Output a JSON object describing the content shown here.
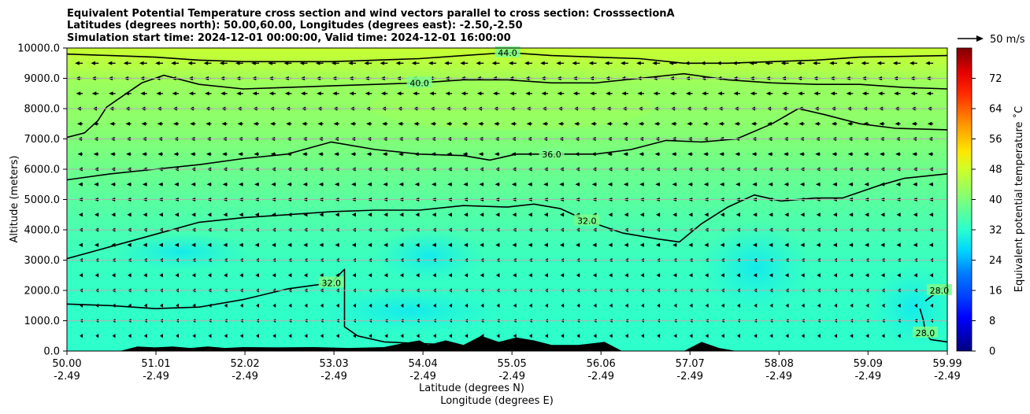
{
  "chart_data": {
    "type": "heatmap",
    "subtype": "filled-contour cross section with wind quiver",
    "title_lines": [
      "Equivalent Potential Temperature cross section and wind vectors parallel to cross section: CrosssectionA",
      "Latitudes (degrees north): 50.00,60.00, Longitudes (degrees east): -2.50,-2.50",
      "Simulation start time: 2024-12-01 00:00:00, Valid time: 2024-12-01 16:00:00"
    ],
    "ylabel": "Altitude (meters)",
    "xlabel_lines": [
      "Latitude (degrees N)",
      "Longitude (degrees E)"
    ],
    "x_range": [
      50.0,
      59.99
    ],
    "ylim": [
      0,
      10000
    ],
    "y_ticks": [
      {
        "value": 0,
        "label": "0.0"
      },
      {
        "value": 1000,
        "label": "1000.0"
      },
      {
        "value": 2000,
        "label": "2000.0"
      },
      {
        "value": 3000,
        "label": "3000.0"
      },
      {
        "value": 4000,
        "label": "4000.0"
      },
      {
        "value": 5000,
        "label": "5000.0"
      },
      {
        "value": 6000,
        "label": "6000.0"
      },
      {
        "value": 7000,
        "label": "7000.0"
      },
      {
        "value": 8000,
        "label": "8000.0"
      },
      {
        "value": 9000,
        "label": "9000.0"
      },
      {
        "value": 10000,
        "label": "10000.0"
      }
    ],
    "x_ticks": [
      {
        "lat": 50.0,
        "lat_label": "50.00",
        "lon_label": "-2.49"
      },
      {
        "lat": 51.01,
        "lat_label": "51.01",
        "lon_label": "-2.49"
      },
      {
        "lat": 52.02,
        "lat_label": "52.02",
        "lon_label": "-2.49"
      },
      {
        "lat": 53.03,
        "lat_label": "53.03",
        "lon_label": "-2.49"
      },
      {
        "lat": 54.04,
        "lat_label": "54.04",
        "lon_label": "-2.49"
      },
      {
        "lat": 55.05,
        "lat_label": "55.05",
        "lon_label": "-2.49"
      },
      {
        "lat": 56.06,
        "lat_label": "56.06",
        "lon_label": "-2.49"
      },
      {
        "lat": 57.07,
        "lat_label": "57.07",
        "lon_label": "-2.49"
      },
      {
        "lat": 58.08,
        "lat_label": "58.08",
        "lon_label": "-2.49"
      },
      {
        "lat": 59.09,
        "lat_label": "59.09",
        "lon_label": "-2.49"
      },
      {
        "lat": 59.99,
        "lat_label": "59.99",
        "lon_label": "-2.49"
      }
    ],
    "grid": "horizontal",
    "colorbar": {
      "label": "Equivalent potential temperature ˚C",
      "range": [
        0,
        80
      ],
      "ticks": [
        0,
        8,
        16,
        24,
        32,
        40,
        48,
        56,
        64,
        72
      ],
      "levels_step": 2
    },
    "quiver_key": {
      "label": "50 m/s",
      "speed": 50
    },
    "wind_field": {
      "latitudes": [
        50.0,
        50.18,
        50.36,
        50.55,
        50.73,
        50.91,
        51.09,
        51.27,
        51.46,
        51.64,
        51.82,
        52.0,
        52.18,
        52.37,
        52.55,
        52.73,
        52.91,
        53.09,
        53.28,
        53.46,
        53.64,
        53.82,
        54.0,
        54.19,
        54.37,
        54.55,
        54.73,
        54.91,
        55.1,
        55.28,
        55.46,
        55.64,
        55.82,
        56.01,
        56.19,
        56.37,
        56.55,
        56.73,
        56.92,
        57.1,
        57.28,
        57.46,
        57.64,
        57.83,
        58.01,
        58.19,
        58.37,
        58.55,
        58.74,
        58.92,
        59.1,
        59.28,
        59.46,
        59.65,
        59.83
      ],
      "levels_m": [
        500,
        1000,
        1500,
        2000,
        2500,
        3000,
        3500,
        4000,
        4500,
        5000,
        5500,
        6000,
        6500,
        7000,
        7500,
        8000,
        8500,
        9000,
        9500
      ],
      "parallel_speed_m_s_by_level": [
        -6,
        -6,
        -6,
        -7,
        -7,
        -7,
        -8,
        -8,
        -8,
        -9,
        -9,
        -9,
        -10,
        -10,
        -11,
        -12,
        -13,
        -14,
        -15
      ]
    },
    "contours": [
      {
        "value": 28.0,
        "label": "28.0",
        "points": [
          [
            59.68,
            1400
          ],
          [
            59.72,
            1000
          ],
          [
            59.74,
            600
          ],
          [
            59.8,
            380
          ],
          [
            59.99,
            300
          ]
        ]
      },
      {
        "value": 28.0,
        "label": "28.0",
        "points": [
          [
            59.74,
            1650
          ],
          [
            59.9,
            2000
          ],
          [
            59.99,
            2180
          ]
        ]
      },
      {
        "value": 32.0,
        "label": "32.0",
        "points": [
          [
            50.0,
            1550
          ],
          [
            50.5,
            1500
          ],
          [
            51.0,
            1400
          ],
          [
            51.5,
            1450
          ],
          [
            52.0,
            1700
          ],
          [
            52.5,
            2050
          ],
          [
            53.0,
            2250
          ],
          [
            53.15,
            2700
          ],
          [
            53.15,
            800
          ],
          [
            53.3,
            500
          ],
          [
            53.6,
            300
          ],
          [
            54.0,
            250
          ],
          [
            54.4,
            200
          ]
        ]
      },
      {
        "value": 32.0,
        "label": "32.0",
        "points": [
          [
            50.0,
            3050
          ],
          [
            50.5,
            3450
          ],
          [
            51.0,
            3850
          ],
          [
            51.5,
            4250
          ],
          [
            52.0,
            4400
          ],
          [
            52.5,
            4500
          ],
          [
            53.0,
            4600
          ],
          [
            53.5,
            4650
          ],
          [
            54.0,
            4650
          ],
          [
            54.5,
            4800
          ],
          [
            55.0,
            4750
          ],
          [
            55.3,
            4850
          ],
          [
            55.6,
            4700
          ],
          [
            55.9,
            4300
          ],
          [
            56.3,
            3900
          ],
          [
            56.7,
            3700
          ],
          [
            56.95,
            3600
          ],
          [
            57.2,
            4200
          ],
          [
            57.5,
            4750
          ],
          [
            57.8,
            5150
          ],
          [
            58.1,
            4950
          ],
          [
            58.5,
            5050
          ],
          [
            58.8,
            5050
          ],
          [
            59.2,
            5450
          ],
          [
            59.5,
            5700
          ],
          [
            59.99,
            5850
          ]
        ]
      },
      {
        "value": 36.0,
        "label": "36.0",
        "points": [
          [
            50.0,
            5650
          ],
          [
            50.5,
            5850
          ],
          [
            51.0,
            6000
          ],
          [
            51.5,
            6150
          ],
          [
            52.0,
            6350
          ],
          [
            52.5,
            6500
          ],
          [
            53.0,
            6900
          ],
          [
            53.5,
            6650
          ],
          [
            54.0,
            6500
          ],
          [
            54.5,
            6450
          ],
          [
            54.8,
            6300
          ],
          [
            55.1,
            6500
          ],
          [
            55.5,
            6500
          ],
          [
            56.0,
            6500
          ],
          [
            56.4,
            6650
          ],
          [
            56.8,
            6950
          ],
          [
            57.2,
            6900
          ],
          [
            57.6,
            7000
          ],
          [
            58.0,
            7500
          ],
          [
            58.3,
            8000
          ],
          [
            58.6,
            7800
          ],
          [
            59.0,
            7500
          ],
          [
            59.4,
            7350
          ],
          [
            59.99,
            7300
          ]
        ]
      },
      {
        "value": 40.0,
        "label": "40.0",
        "points": [
          [
            50.0,
            7050
          ],
          [
            50.2,
            7200
          ],
          [
            50.35,
            7600
          ],
          [
            50.45,
            8050
          ],
          [
            50.65,
            8450
          ],
          [
            50.85,
            8850
          ],
          [
            51.1,
            9100
          ],
          [
            51.5,
            8800
          ],
          [
            52.0,
            8650
          ],
          [
            52.5,
            8700
          ],
          [
            53.0,
            8750
          ],
          [
            53.5,
            8800
          ],
          [
            54.0,
            8850
          ],
          [
            54.5,
            8950
          ],
          [
            55.0,
            8950
          ],
          [
            55.5,
            8850
          ],
          [
            56.0,
            8850
          ],
          [
            56.5,
            9000
          ],
          [
            57.0,
            9150
          ],
          [
            57.5,
            8950
          ],
          [
            58.0,
            8850
          ],
          [
            58.5,
            8800
          ],
          [
            59.0,
            8800
          ],
          [
            59.5,
            8700
          ],
          [
            59.99,
            8650
          ]
        ]
      },
      {
        "value": 44.0,
        "label": "44.0",
        "points": [
          [
            50.0,
            9800
          ],
          [
            50.5,
            9750
          ],
          [
            51.0,
            9700
          ],
          [
            51.5,
            9600
          ],
          [
            52.0,
            9550
          ],
          [
            52.5,
            9550
          ],
          [
            53.0,
            9550
          ],
          [
            53.5,
            9600
          ],
          [
            54.0,
            9650
          ],
          [
            54.5,
            9750
          ],
          [
            55.0,
            9850
          ],
          [
            55.5,
            9750
          ],
          [
            56.0,
            9700
          ],
          [
            56.5,
            9650
          ],
          [
            57.0,
            9500
          ],
          [
            57.5,
            9500
          ],
          [
            58.0,
            9550
          ],
          [
            58.5,
            9600
          ],
          [
            59.0,
            9700
          ],
          [
            59.99,
            9750
          ]
        ]
      }
    ],
    "terrain": {
      "description": "black filled orography along the bottom axis (peaks up to ~600 m near 54.8°N)",
      "points": [
        [
          50.0,
          0
        ],
        [
          50.6,
          0
        ],
        [
          50.8,
          150
        ],
        [
          51.0,
          120
        ],
        [
          51.2,
          150
        ],
        [
          51.4,
          100
        ],
        [
          51.6,
          150
        ],
        [
          51.8,
          100
        ],
        [
          52.0,
          130
        ],
        [
          52.4,
          120
        ],
        [
          52.8,
          130
        ],
        [
          53.2,
          100
        ],
        [
          53.6,
          130
        ],
        [
          53.8,
          250
        ],
        [
          54.0,
          350
        ],
        [
          54.1,
          200
        ],
        [
          54.3,
          350
        ],
        [
          54.5,
          200
        ],
        [
          54.7,
          500
        ],
        [
          54.9,
          300
        ],
        [
          55.1,
          450
        ],
        [
          55.3,
          350
        ],
        [
          55.5,
          200
        ],
        [
          55.8,
          200
        ],
        [
          56.1,
          300
        ],
        [
          56.3,
          0
        ],
        [
          57.0,
          0
        ],
        [
          57.2,
          300
        ],
        [
          57.4,
          100
        ],
        [
          57.6,
          0
        ],
        [
          59.99,
          0
        ]
      ]
    }
  }
}
